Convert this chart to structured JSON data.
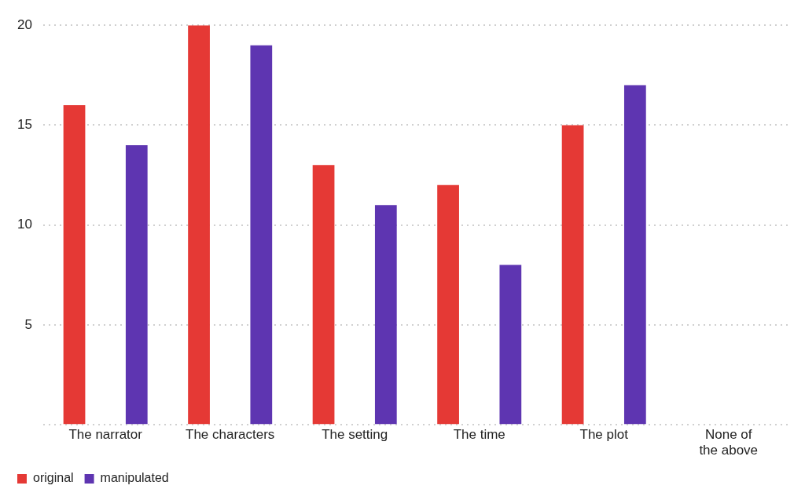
{
  "chart_data": {
    "type": "bar",
    "categories": [
      "The narrator",
      "The characters",
      "The setting",
      "The time",
      "The plot",
      "None of the above"
    ],
    "series": [
      {
        "name": "original",
        "color": "#e53935",
        "values": [
          16,
          20,
          13,
          12,
          15,
          0
        ]
      },
      {
        "name": "manipulated",
        "color": "#5e35b1",
        "values": [
          14,
          19,
          11,
          8,
          17,
          0
        ]
      }
    ],
    "ylim": [
      0,
      20
    ],
    "yticks": [
      {
        "value": 0,
        "label": null
      },
      5,
      10,
      15,
      20
    ],
    "grid": "y",
    "legend": "bottom left"
  }
}
